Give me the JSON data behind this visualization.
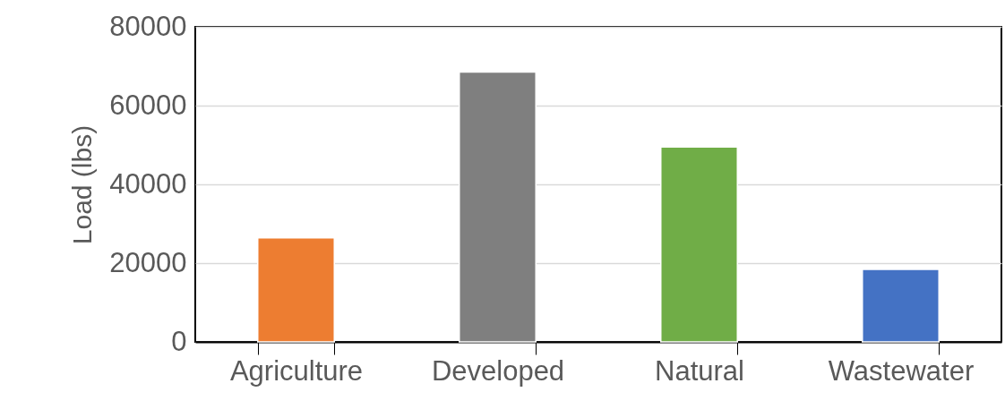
{
  "chart_data": {
    "type": "bar",
    "ylabel": "Load (lbs)",
    "categories": [
      "Agriculture",
      "Developed",
      "Natural",
      "Wastewater"
    ],
    "values": [
      26400,
      68500,
      49500,
      18400
    ],
    "colors": [
      "#ed7d31",
      "#7f7f7f",
      "#70ad47",
      "#4472c4"
    ],
    "ylim": [
      0,
      80000
    ],
    "yticks": [
      0,
      20000,
      40000,
      60000,
      80000
    ],
    "grid": "y"
  }
}
